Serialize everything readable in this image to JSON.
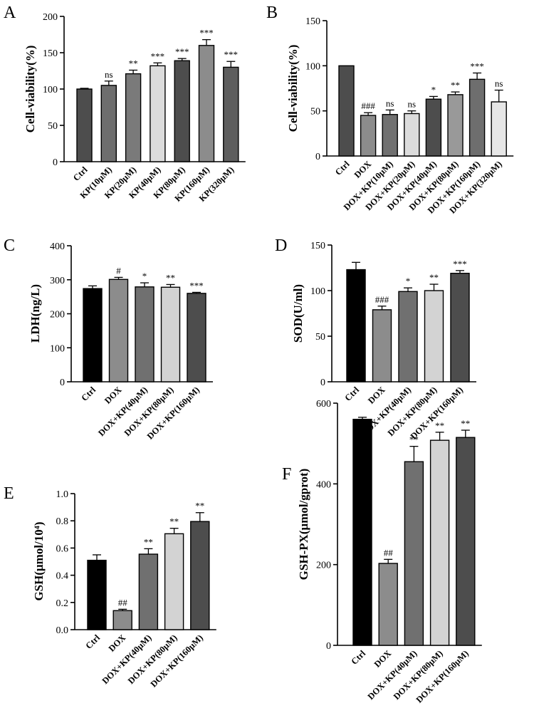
{
  "chart_data": [
    {
      "panel": "A",
      "type": "bar",
      "ylabel": "Cell-viability(%)",
      "ylim": [
        0,
        200
      ],
      "yticks": [
        0,
        50,
        100,
        150,
        200
      ],
      "categories": [
        "Ctrl",
        "KP(10μM)",
        "KP(20μM)",
        "KP(40μM)",
        "KP(80μM)",
        "KP(160μM)",
        "KP(320μM)"
      ],
      "values": [
        100,
        105,
        121,
        132,
        139,
        160,
        130
      ],
      "errors": [
        1,
        6,
        5,
        4,
        3,
        8,
        8
      ],
      "annotations": [
        "",
        "ns",
        "**",
        "***",
        "***",
        "***",
        "***"
      ],
      "colors": [
        "#4d4d4d",
        "#6e6e6e",
        "#7a7a7a",
        "#dcdcdc",
        "#4d4d4d",
        "#8c8c8c",
        "#5e5e5e"
      ]
    },
    {
      "panel": "B",
      "type": "bar",
      "ylabel": "Cell-viability(%)",
      "ylim": [
        0,
        150
      ],
      "yticks": [
        0,
        50,
        100,
        150
      ],
      "categories": [
        "Ctrl",
        "DOX",
        "DOX+KP(10μM)",
        "DOX+KP(20μM)",
        "DOX+KP(40μM)",
        "DOX+KP(80μM)",
        "DOX+KP(160μM)",
        "DOX+KP(320μM)"
      ],
      "values": [
        100,
        45,
        46,
        47,
        63,
        68,
        85,
        60
      ],
      "errors": [
        0,
        3,
        5,
        3,
        3,
        3,
        7,
        13
      ],
      "annotations": [
        "",
        "###",
        "ns",
        "ns",
        "*",
        "**",
        "***",
        "ns"
      ],
      "colors": [
        "#4d4d4d",
        "#8c8c8c",
        "#707070",
        "#dcdcdc",
        "#4d4d4d",
        "#999999",
        "#6e6e6e",
        "#e6e6e6"
      ]
    },
    {
      "panel": "C",
      "type": "bar",
      "ylabel": "LDH(ng/L)",
      "ylim": [
        0,
        400
      ],
      "yticks": [
        0,
        100,
        200,
        300,
        400
      ],
      "categories": [
        "Ctrl",
        "DOX",
        "DOX+KP(40μM)",
        "DOX+KP(80μM)",
        "DOX+KP(160μM)"
      ],
      "values": [
        274,
        301,
        279,
        278,
        260
      ],
      "errors": [
        8,
        6,
        12,
        8,
        3
      ],
      "annotations": [
        "",
        "#",
        "*",
        "**",
        "***"
      ],
      "colors": [
        "#000000",
        "#8c8c8c",
        "#707070",
        "#d3d3d3",
        "#4d4d4d"
      ]
    },
    {
      "panel": "D",
      "type": "bar",
      "ylabel": "SOD(U/ml)",
      "ylim": [
        0,
        150
      ],
      "yticks": [
        0,
        50,
        100,
        150
      ],
      "categories": [
        "Ctrl",
        "DOX",
        "DOX+KP(40μM)",
        "DOX+KP(80μM)",
        "DOX+KP(160μM)"
      ],
      "values": [
        123,
        79,
        99,
        100,
        119
      ],
      "errors": [
        8,
        4,
        4,
        7,
        3
      ],
      "annotations": [
        "",
        "###",
        "*",
        "**",
        "***"
      ],
      "colors": [
        "#000000",
        "#8c8c8c",
        "#707070",
        "#d3d3d3",
        "#4d4d4d"
      ]
    },
    {
      "panel": "E",
      "type": "bar",
      "ylabel": "GSH(μmol/10⁴)",
      "ylim": [
        0,
        1.0
      ],
      "yticks": [
        "0.0",
        "0.2",
        "0.4",
        "0.6",
        "0.8",
        "1.0"
      ],
      "categories": [
        "Ctrl",
        "DOX",
        "DOX+KP(40μM)",
        "DOX+KP(80μM)",
        "DOX+KP(160μM)"
      ],
      "values": [
        0.51,
        0.14,
        0.555,
        0.705,
        0.795
      ],
      "errors": [
        0.04,
        0.01,
        0.04,
        0.04,
        0.065
      ],
      "annotations": [
        "",
        "##",
        "**",
        "**",
        "**"
      ],
      "colors": [
        "#000000",
        "#8c8c8c",
        "#707070",
        "#d3d3d3",
        "#4d4d4d"
      ]
    },
    {
      "panel": "F",
      "type": "bar",
      "ylabel": "GSH-PX(μmol/gprot)",
      "ylim": [
        0,
        600
      ],
      "yticks": [
        0,
        200,
        400,
        600
      ],
      "categories": [
        "Ctrl",
        "DOX",
        "DOX+KP(40μM)",
        "DOX+KP(80μM)",
        "DOX+KP(160μM)"
      ],
      "values": [
        560,
        203,
        455,
        508,
        515
      ],
      "errors": [
        5,
        10,
        38,
        20,
        18
      ],
      "annotations": [
        "",
        "##",
        "**",
        "**",
        "**"
      ],
      "colors": [
        "#000000",
        "#8c8c8c",
        "#707070",
        "#d3d3d3",
        "#4d4d4d"
      ]
    }
  ]
}
